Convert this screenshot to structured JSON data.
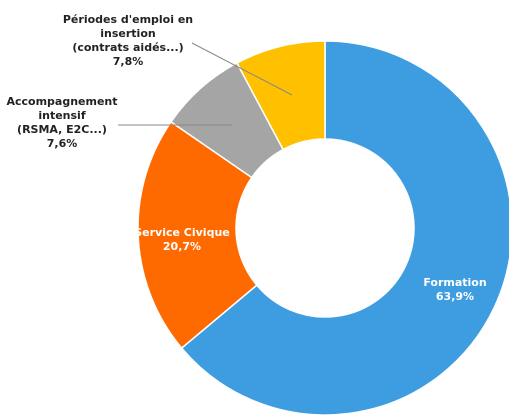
{
  "chart_data": {
    "type": "donut",
    "categories": [
      [
        "Formation"
      ],
      [
        "Service Civique"
      ],
      [
        "Accompagnement",
        "intensif",
        "(RSMA, E2C...)"
      ],
      [
        "Périodes d'emploi en",
        "insertion",
        "(contrats aidés...)"
      ]
    ],
    "values": [
      63.9,
      20.7,
      7.6,
      7.8
    ],
    "value_labels": [
      "63,9%",
      "20,7%",
      "7,6%",
      "7,8%"
    ],
    "colors": [
      "#3d9de0",
      "#ff6a00",
      "#a5a5a5",
      "#ffc000"
    ]
  }
}
